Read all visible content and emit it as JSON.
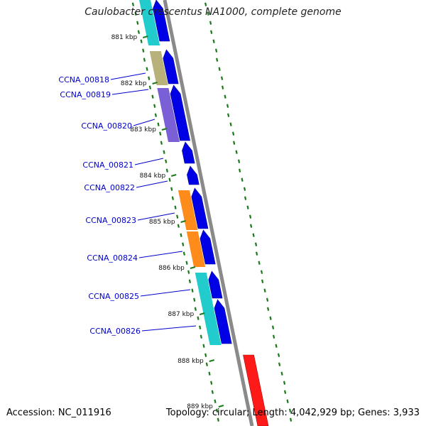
{
  "title": "Caulobacter crescentus NA1000, complete genome",
  "footer": {
    "accession": "Accession: NC_011916",
    "summary": "Topology: circular; Length: 4,042,929 bp; Genes: 3,933"
  },
  "colors": {
    "backbone": "#8a8a8a",
    "cds": "#0000e6",
    "gene_label": "#0000cc",
    "tick": "#1a7a1a",
    "highlight": "#ff1a1a"
  },
  "ticks": [
    "881 kbp",
    "882 kbp",
    "883 kbp",
    "884 kbp",
    "885 kbp",
    "886 kbp",
    "887 kbp",
    "888 kbp",
    "889 kbp"
  ],
  "genes": [
    {
      "label": "CCNA_00818",
      "strand": "+",
      "bar": "#b8b27a"
    },
    {
      "label": "CCNA_00819",
      "strand": "+",
      "bar": "#7b5fd6"
    },
    {
      "label": "CCNA_00820",
      "strand": "+",
      "bar": "#7b5fd6"
    },
    {
      "label": "CCNA_00821",
      "strand": "+",
      "bar": null
    },
    {
      "label": "CCNA_00822",
      "strand": "+",
      "bar": null
    },
    {
      "label": "CCNA_00823",
      "strand": "+",
      "bar": "#ff8c1a"
    },
    {
      "label": "CCNA_00824",
      "strand": "+",
      "bar": "#ff8c1a"
    },
    {
      "label": "CCNA_00825",
      "strand": "+",
      "bar": "#22cccc"
    },
    {
      "label": "CCNA_00826",
      "strand": "+",
      "bar": "#22cccc"
    }
  ]
}
